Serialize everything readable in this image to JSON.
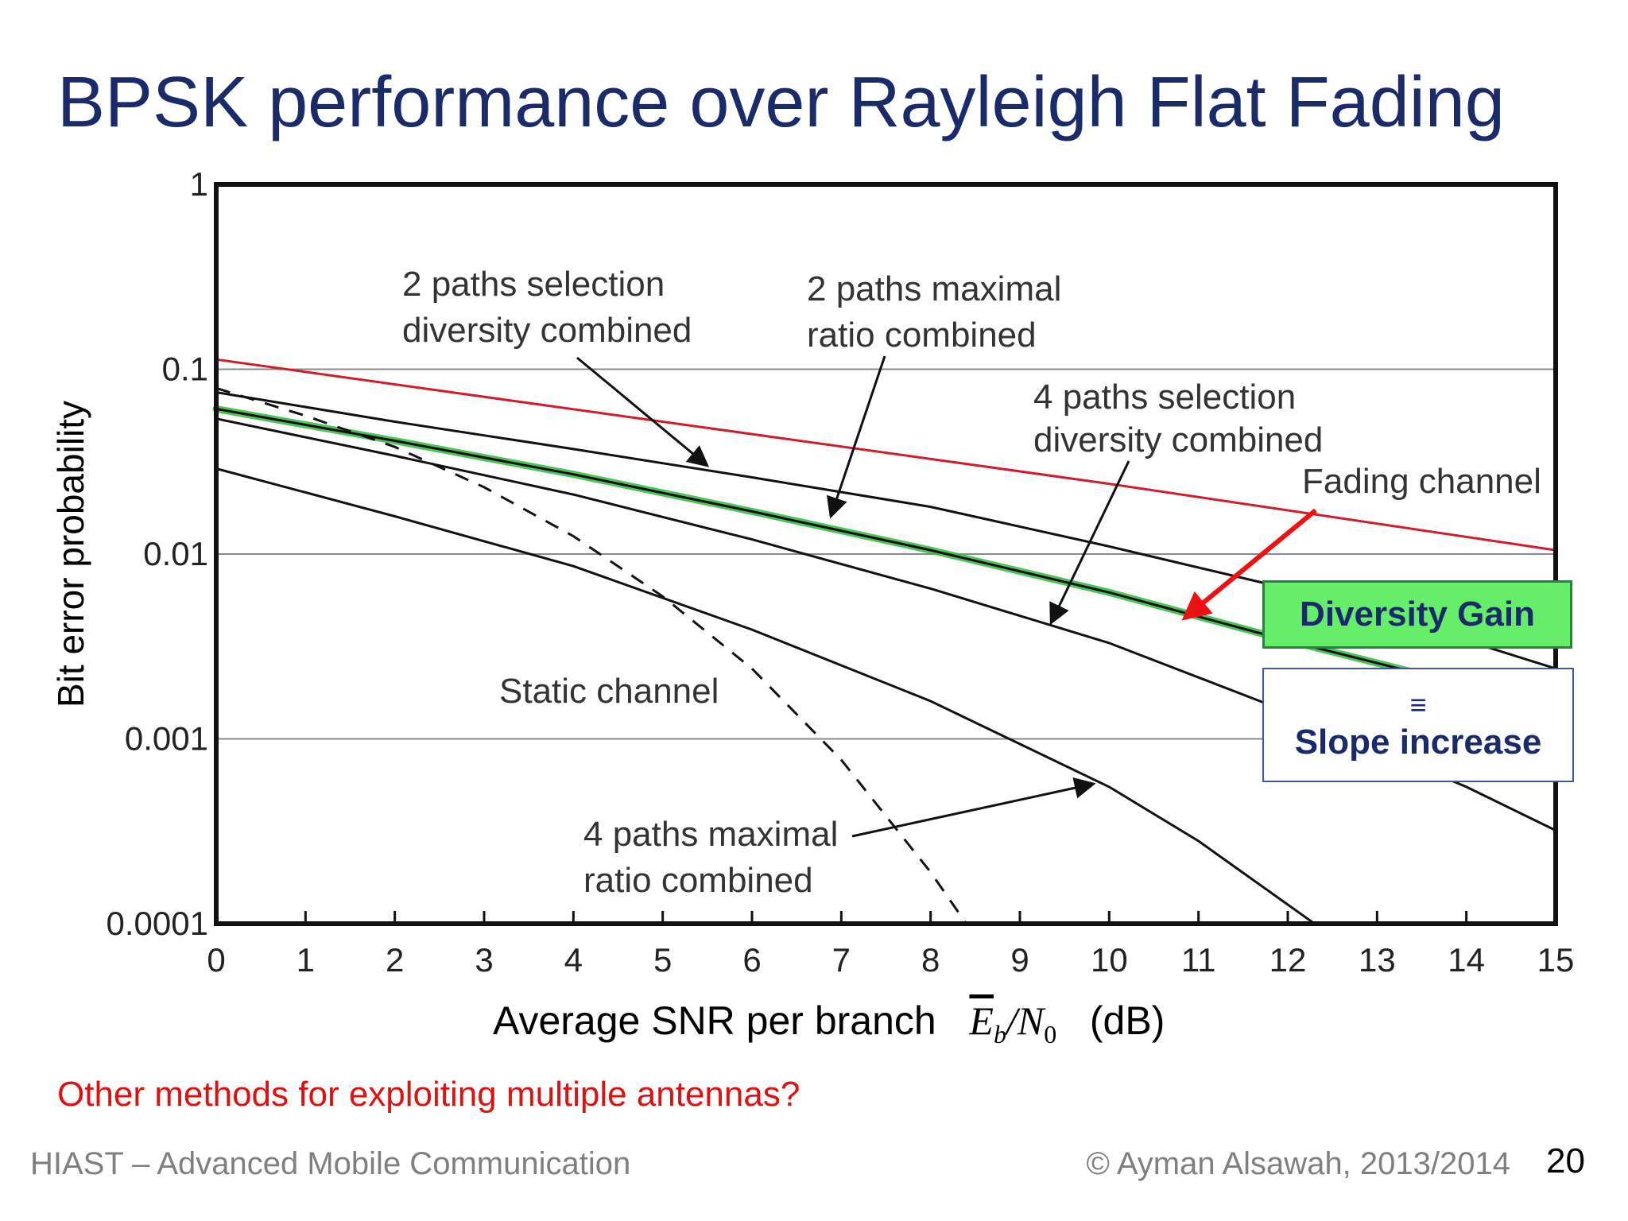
{
  "slide": {
    "title": "BPSK performance over Rayleigh Flat Fading",
    "question": "Other methods for exploiting multiple antennas?",
    "footer_left": "HIAST  – Advanced Mobile Communication",
    "footer_right": "© Ayman Alsawah, 2013/2014",
    "page_number": "20"
  },
  "callouts": {
    "gain": "Diversity Gain",
    "equiv_symbol": "≡",
    "slope": "Slope increase"
  },
  "colors": {
    "title": "#1b2a6b",
    "fading": "#d01c2a",
    "highlight": "#3dbb4a",
    "arrow": "#ee1111",
    "question": "#e01010"
  },
  "chart_data": {
    "type": "line",
    "ylabel": "Bit error probability",
    "xlabel": {
      "prefix": "Average SNR per branch",
      "symbol_E": "E",
      "symbol_b": "b",
      "symbol_N": "N",
      "symbol_0": "0",
      "unit": "(dB)"
    },
    "xlim": [
      0,
      15
    ],
    "ylim": [
      0.0001,
      1
    ],
    "yscale": "log",
    "grid": "horizontal",
    "x_ticks": [
      "0",
      "1",
      "2",
      "3",
      "4",
      "5",
      "6",
      "7",
      "8",
      "9",
      "10",
      "11",
      "12",
      "13",
      "14",
      "15"
    ],
    "y_ticks": [
      {
        "value": 1,
        "label": "1"
      },
      {
        "value": 0.1,
        "label": "0.1"
      },
      {
        "value": 0.01,
        "label": "0.01"
      },
      {
        "value": 0.001,
        "label": "0.001"
      },
      {
        "value": 0.0001,
        "label": "0.0001"
      }
    ],
    "series": [
      {
        "key": "fading",
        "color": "#d01c2a",
        "style": "solid",
        "x": [
          0,
          5,
          10,
          15
        ],
        "y": [
          0.113,
          0.052,
          0.024,
          0.0105
        ]
      },
      {
        "key": "sel2",
        "color": "#111111",
        "style": "solid",
        "x": [
          0,
          2,
          4,
          6,
          8,
          10,
          12,
          14,
          15
        ],
        "y": [
          0.075,
          0.052,
          0.037,
          0.026,
          0.018,
          0.011,
          0.0065,
          0.0034,
          0.0024
        ]
      },
      {
        "key": "mrc2",
        "color": "#111111",
        "style": "solid",
        "highlight": true,
        "x": [
          0,
          2,
          4,
          6,
          8,
          10,
          12,
          13.4
        ],
        "y": [
          0.061,
          0.041,
          0.027,
          0.017,
          0.0105,
          0.0062,
          0.0034,
          0.0023
        ]
      },
      {
        "key": "sel4",
        "color": "#111111",
        "style": "solid",
        "x": [
          0,
          2,
          4,
          6,
          8,
          10,
          12,
          14,
          15
        ],
        "y": [
          0.054,
          0.034,
          0.021,
          0.012,
          0.0065,
          0.0033,
          0.0014,
          0.00055,
          0.00032
        ]
      },
      {
        "key": "mrc4",
        "color": "#111111",
        "style": "solid",
        "x": [
          0,
          2,
          4,
          6,
          8,
          10,
          11,
          12.3
        ],
        "y": [
          0.029,
          0.016,
          0.0086,
          0.0039,
          0.0016,
          0.00055,
          0.00028,
          0.0001
        ]
      },
      {
        "key": "static",
        "color": "#111111",
        "style": "dashed",
        "x": [
          0,
          1,
          2,
          3,
          4,
          5,
          6,
          7,
          8,
          8.4
        ],
        "y": [
          0.079,
          0.056,
          0.038,
          0.023,
          0.0125,
          0.0059,
          0.0024,
          0.00077,
          0.00019,
          0.0001
        ]
      }
    ],
    "annotations": [
      {
        "key": "sel2",
        "lines": [
          "2 paths selection",
          "diversity combined"
        ]
      },
      {
        "key": "mrc2",
        "lines": [
          "2 paths maximal",
          "ratio combined"
        ]
      },
      {
        "key": "sel4",
        "lines": [
          "4 paths selection",
          "diversity combined"
        ]
      },
      {
        "key": "fading",
        "lines": [
          "Fading channel"
        ]
      },
      {
        "key": "static",
        "lines": [
          "Static channel"
        ]
      },
      {
        "key": "mrc4",
        "lines": [
          "4 paths maximal",
          "ratio combined"
        ]
      }
    ]
  }
}
